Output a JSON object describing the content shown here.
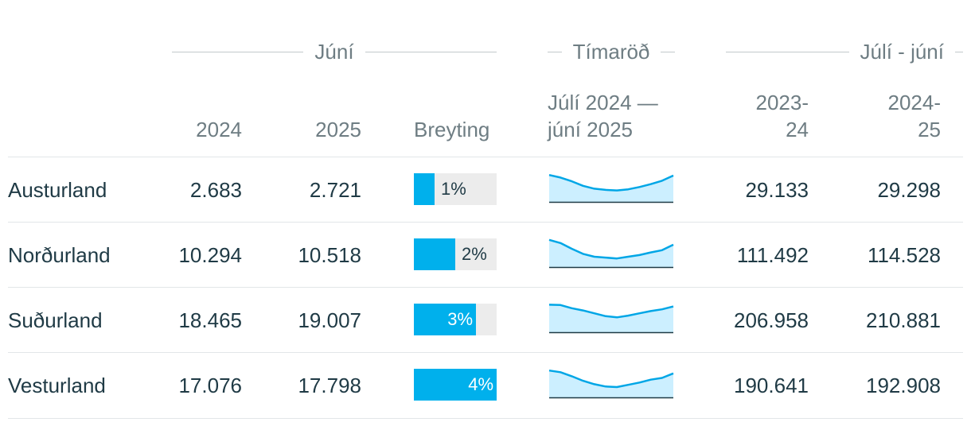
{
  "header": {
    "group_june": "Júní",
    "group_timeseries": "Tímaröð",
    "group_julyjune": "Júlí - júní",
    "col_2024": "2024",
    "col_2025": "2025",
    "col_change": "Breyting",
    "col_spark_line1": "Júlí 2024 —",
    "col_spark_line2": "júní 2025",
    "col_2324_line1": "2023-",
    "col_2324_line2": "24",
    "col_2425_line1": "2024-",
    "col_2425_line2": "25"
  },
  "colors": {
    "accent": "#00b0ec",
    "bar_bg": "#ececec",
    "spark_fill": "#ccefff",
    "spark_line": "#00a6e6",
    "text": "#1f3a45",
    "muted": "#6e7d83"
  },
  "rows": [
    {
      "region": "Austurland",
      "june_2024": "2.683",
      "june_2025": "2.721",
      "change": "1%",
      "change_value": 1,
      "total_2324": "29.133",
      "total_2425": "29.298"
    },
    {
      "region": "Norðurland",
      "june_2024": "10.294",
      "june_2025": "10.518",
      "change": "2%",
      "change_value": 2,
      "total_2324": "111.492",
      "total_2425": "114.528"
    },
    {
      "region": "Suðurland",
      "june_2024": "18.465",
      "june_2025": "19.007",
      "change": "3%",
      "change_value": 3,
      "total_2324": "206.958",
      "total_2425": "210.881"
    },
    {
      "region": "Vesturland",
      "june_2024": "17.076",
      "june_2025": "17.798",
      "change": "4%",
      "change_value": 4,
      "total_2324": "190.641",
      "total_2425": "192.908"
    }
  ],
  "chart_data": {
    "type": "table",
    "bar_scale_max": 4,
    "sparkline_range": "Júlí 2024 — júní 2025",
    "sparklines": [
      {
        "region": "Austurland",
        "values": [
          0.94,
          0.85,
          0.72,
          0.56,
          0.46,
          0.42,
          0.4,
          0.44,
          0.52,
          0.62,
          0.74,
          0.92
        ]
      },
      {
        "region": "Norðurland",
        "values": [
          0.95,
          0.84,
          0.64,
          0.46,
          0.36,
          0.33,
          0.3,
          0.36,
          0.42,
          0.51,
          0.59,
          0.78
        ]
      },
      {
        "region": "Suðurland",
        "values": [
          0.96,
          0.95,
          0.84,
          0.76,
          0.66,
          0.56,
          0.52,
          0.58,
          0.66,
          0.74,
          0.8,
          0.9
        ]
      },
      {
        "region": "Vesturland",
        "values": [
          0.94,
          0.88,
          0.74,
          0.58,
          0.46,
          0.38,
          0.36,
          0.44,
          0.52,
          0.62,
          0.68,
          0.84
        ]
      }
    ]
  }
}
